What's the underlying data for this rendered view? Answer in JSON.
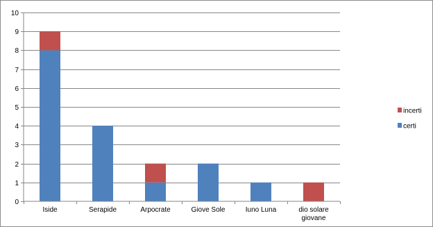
{
  "chart_data": {
    "type": "bar",
    "stacked": true,
    "categories": [
      "Iside",
      "Serapide",
      "Arpocrate",
      "Giove Sole",
      "Iuno Luna",
      "dio solare giovane"
    ],
    "category_lines": [
      [
        "Iside"
      ],
      [
        "Serapide"
      ],
      [
        "Arpocrate"
      ],
      [
        "Giove Sole"
      ],
      [
        "Iuno Luna"
      ],
      [
        "dio solare",
        "giovane"
      ]
    ],
    "series": [
      {
        "name": "certi",
        "color": "#4f81bd",
        "values": [
          8,
          4,
          1,
          2,
          1,
          0
        ]
      },
      {
        "name": "incerti",
        "color": "#c0504d",
        "values": [
          1,
          0,
          1,
          0,
          0,
          1
        ]
      }
    ],
    "ylim": [
      0,
      10
    ],
    "yticks": [
      0,
      1,
      2,
      3,
      4,
      5,
      6,
      7,
      8,
      9,
      10
    ],
    "grid": true,
    "legend_position": "right",
    "legend_order": [
      "incerti",
      "certi"
    ]
  }
}
